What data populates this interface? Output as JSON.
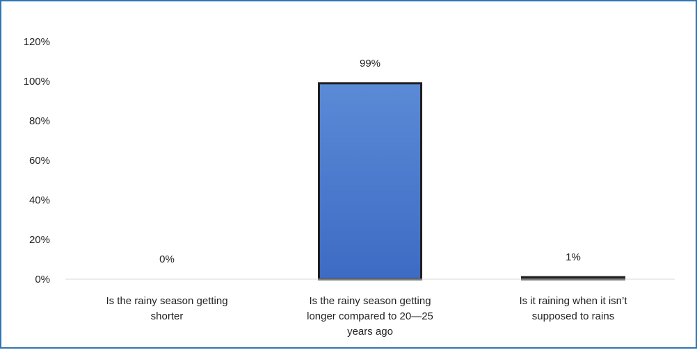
{
  "chart_data": {
    "type": "bar",
    "title": "",
    "xlabel": "",
    "ylabel": "",
    "categories": [
      [
        "Is the rainy season getting",
        "shorter"
      ],
      [
        "Is the rainy season getting",
        "longer compared to 20—25",
        "years ago"
      ],
      [
        "Is it raining when it isn’t",
        "supposed to rains"
      ]
    ],
    "values": [
      0,
      99,
      1
    ],
    "data_labels": [
      "0%",
      "99%",
      "1%"
    ],
    "ylim": [
      0,
      120
    ],
    "yticks": [
      0,
      20,
      40,
      60,
      80,
      100,
      120
    ],
    "ytick_labels": [
      "0%",
      "20%",
      "40%",
      "60%",
      "80%",
      "100%",
      "120%"
    ],
    "grid": false,
    "legend": "none",
    "colors": {
      "bar_fill_top": "#5b8ad6",
      "bar_fill_bottom": "#3d6bc4",
      "bar_stroke": "#1f1f1f",
      "axis": "#d9d9d9",
      "frame": "#2e75b6"
    }
  }
}
